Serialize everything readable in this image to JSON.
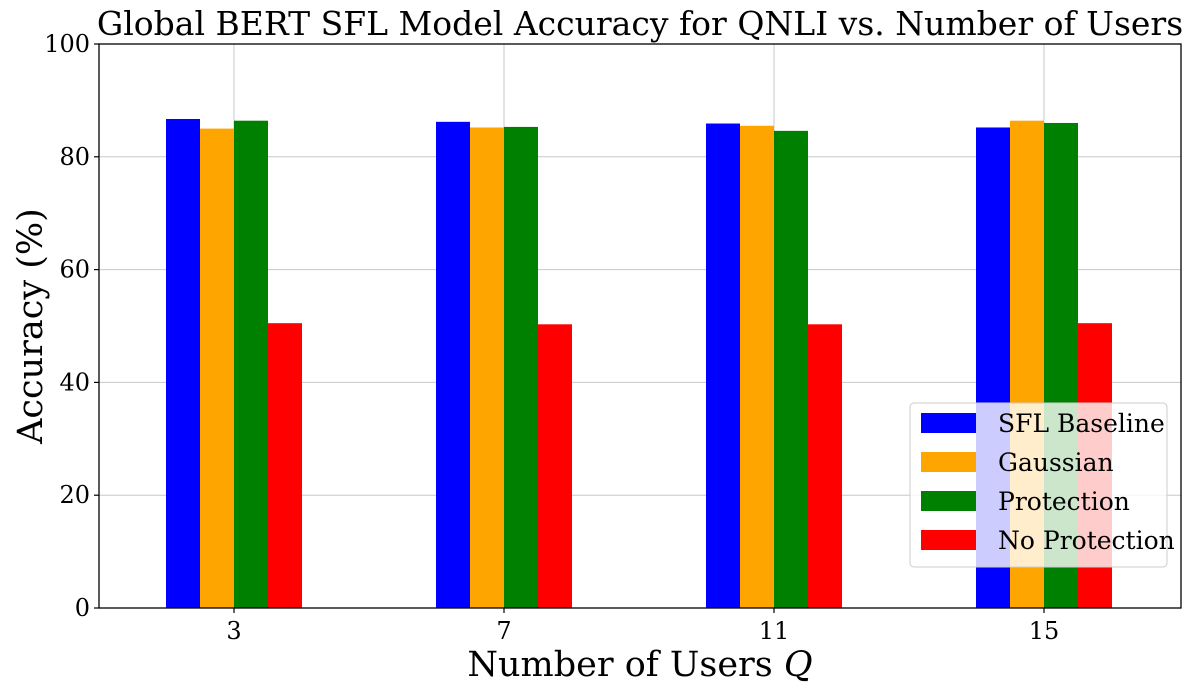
{
  "chart_data": {
    "type": "bar",
    "title": "Global BERT SFL Model Accuracy for QNLI vs. Number of Users",
    "xlabel": "Number of Users",
    "xlabel_var": "Q",
    "ylabel": "Accuracy (%)",
    "categories": [
      "3",
      "7",
      "11",
      "15"
    ],
    "ylim": [
      0,
      100
    ],
    "yticks": [
      0,
      20,
      40,
      60,
      80,
      100
    ],
    "grid": true,
    "legend_position": "bottom-right",
    "series": [
      {
        "name": "SFL Baseline",
        "color": "#0000ff",
        "values": [
          86.7,
          86.2,
          85.9,
          85.2
        ]
      },
      {
        "name": "Gaussian",
        "color": "#ffa500",
        "values": [
          85.0,
          85.2,
          85.5,
          86.4
        ]
      },
      {
        "name": "Protection",
        "color": "#008000",
        "values": [
          86.4,
          85.3,
          84.6,
          86.0
        ]
      },
      {
        "name": "No Protection",
        "color": "#ff0000",
        "values": [
          50.5,
          50.3,
          50.3,
          50.5
        ]
      }
    ]
  }
}
